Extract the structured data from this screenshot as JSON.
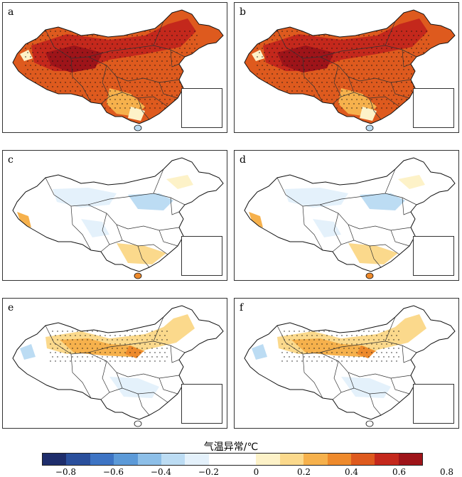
{
  "panels": [
    {
      "label": "a",
      "scheme": "warm-strong"
    },
    {
      "label": "b",
      "scheme": "warm-strong"
    },
    {
      "label": "c",
      "scheme": "neutral-mixed"
    },
    {
      "label": "d",
      "scheme": "neutral-mixed"
    },
    {
      "label": "e",
      "scheme": "warm-north"
    },
    {
      "label": "f",
      "scheme": "warm-north"
    }
  ],
  "colorbar": {
    "title": "气温异常/℃",
    "ticks": [
      "−0.8",
      "−0.6",
      "−0.4",
      "−0.2",
      "0",
      "0.2",
      "0.4",
      "0.6",
      "0.8"
    ],
    "colors": [
      "#1e2d6b",
      "#2a4f9c",
      "#3d74c4",
      "#5c9ad8",
      "#8dbfe8",
      "#bcdcf3",
      "#e4f1fb",
      "#ffffff",
      "#ffffff",
      "#fdf2c8",
      "#fbd98c",
      "#f6b14c",
      "#ee8a2c",
      "#de5a1e",
      "#c4281c",
      "#9e1419"
    ]
  }
}
